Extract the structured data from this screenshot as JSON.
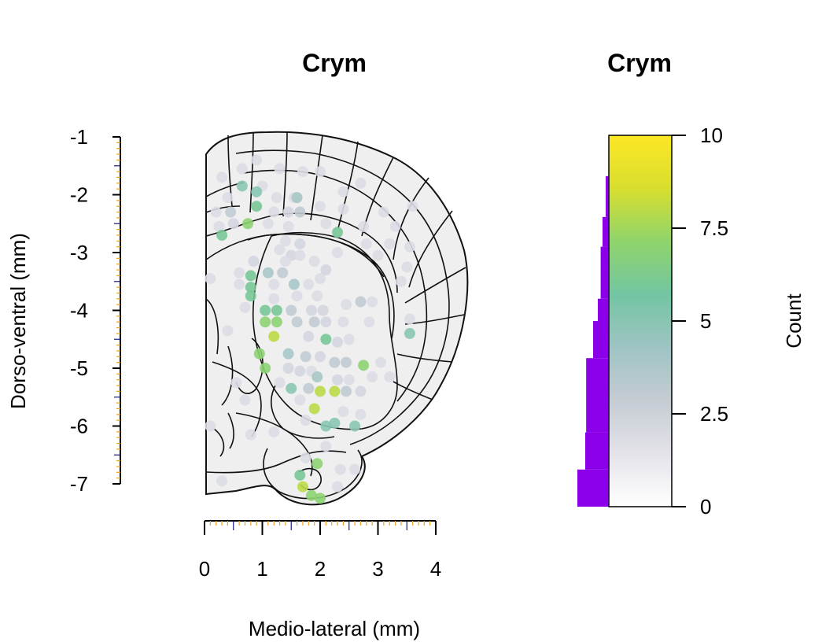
{
  "chart_data": [
    {
      "type": "scatter",
      "title": "Crym",
      "xlabel": "Medio-lateral (mm)",
      "ylabel": "Dorso-ventral (mm)",
      "xlim": [
        0,
        4
      ],
      "ylim": [
        -7,
        -1
      ],
      "xticks": [
        "0",
        "1",
        "2",
        "3",
        "4"
      ],
      "yticks": [
        "-1",
        "-2",
        "-3",
        "-4",
        "-5",
        "-6",
        "-7"
      ],
      "grid": false,
      "background": "coronal brain atlas outline (right hemisphere)",
      "point_color_scale": "count, 0 to 10 (white-grey-teal-green-yellow)",
      "points": [
        {
          "x": 0.3,
          "y": -1.7,
          "c": 1
        },
        {
          "x": 0.65,
          "y": -1.55,
          "c": 1
        },
        {
          "x": 0.9,
          "y": -1.4,
          "c": 1
        },
        {
          "x": 1.3,
          "y": -1.55,
          "c": 1
        },
        {
          "x": 1.7,
          "y": -1.6,
          "c": 1
        },
        {
          "x": 2.0,
          "y": -1.6,
          "c": 1
        },
        {
          "x": 2.7,
          "y": -1.8,
          "c": 1
        },
        {
          "x": 1.0,
          "y": -1.85,
          "c": 1
        },
        {
          "x": 0.65,
          "y": -1.85,
          "c": 5
        },
        {
          "x": 0.9,
          "y": -1.95,
          "c": 5
        },
        {
          "x": 0.4,
          "y": -2.05,
          "c": 1
        },
        {
          "x": 1.25,
          "y": -2.05,
          "c": 1
        },
        {
          "x": 1.55,
          "y": -2.05,
          "c": 1
        },
        {
          "x": 1.6,
          "y": -2.05,
          "c": 4
        },
        {
          "x": 2.0,
          "y": -2.2,
          "c": 1
        },
        {
          "x": 2.4,
          "y": -1.95,
          "c": 1
        },
        {
          "x": 3.6,
          "y": -2.2,
          "c": 1
        },
        {
          "x": 0.2,
          "y": -2.3,
          "c": 1
        },
        {
          "x": 0.45,
          "y": -2.3,
          "c": 3
        },
        {
          "x": 0.9,
          "y": -2.2,
          "c": 6
        },
        {
          "x": 1.2,
          "y": -2.3,
          "c": 1
        },
        {
          "x": 1.45,
          "y": -2.3,
          "c": 2
        },
        {
          "x": 1.65,
          "y": -2.3,
          "c": 3
        },
        {
          "x": 2.4,
          "y": -2.25,
          "c": 1
        },
        {
          "x": 3.1,
          "y": -2.3,
          "c": 1
        },
        {
          "x": 0.25,
          "y": -2.55,
          "c": 1
        },
        {
          "x": 0.5,
          "y": -2.5,
          "c": 2
        },
        {
          "x": 0.75,
          "y": -2.5,
          "c": 7
        },
        {
          "x": 0.3,
          "y": -2.7,
          "c": 6
        },
        {
          "x": 1.1,
          "y": -2.5,
          "c": 1
        },
        {
          "x": 1.45,
          "y": -2.55,
          "c": 1
        },
        {
          "x": 2.1,
          "y": -2.5,
          "c": 1
        },
        {
          "x": 2.3,
          "y": -2.65,
          "c": 6
        },
        {
          "x": 2.75,
          "y": -2.55,
          "c": 1
        },
        {
          "x": 3.3,
          "y": -2.55,
          "c": 1
        },
        {
          "x": 1.4,
          "y": -2.8,
          "c": 1
        },
        {
          "x": 1.65,
          "y": -2.85,
          "c": 2
        },
        {
          "x": 1.3,
          "y": -2.95,
          "c": 1
        },
        {
          "x": 1.5,
          "y": -3.05,
          "c": 2
        },
        {
          "x": 1.65,
          "y": -3.05,
          "c": 1
        },
        {
          "x": 2.8,
          "y": -2.85,
          "c": 1
        },
        {
          "x": 3.2,
          "y": -2.85,
          "c": 1
        },
        {
          "x": 3.55,
          "y": -2.9,
          "c": 1
        },
        {
          "x": 2.3,
          "y": -3.0,
          "c": 1
        },
        {
          "x": 3.0,
          "y": -3.05,
          "c": 1
        },
        {
          "x": 0.85,
          "y": -3.15,
          "c": 2
        },
        {
          "x": 1.4,
          "y": -3.15,
          "c": 1
        },
        {
          "x": 1.9,
          "y": -3.15,
          "c": 1
        },
        {
          "x": 2.1,
          "y": -3.3,
          "c": 2
        },
        {
          "x": 1.1,
          "y": -3.35,
          "c": 4
        },
        {
          "x": 1.35,
          "y": -3.35,
          "c": 3
        },
        {
          "x": 0.6,
          "y": -3.35,
          "c": 1
        },
        {
          "x": 0.8,
          "y": -3.4,
          "c": 6
        },
        {
          "x": 0.1,
          "y": -3.45,
          "c": 1
        },
        {
          "x": 1.2,
          "y": -3.55,
          "c": 1
        },
        {
          "x": 1.55,
          "y": -3.55,
          "c": 4
        },
        {
          "x": 0.8,
          "y": -3.6,
          "c": 6
        },
        {
          "x": 1.8,
          "y": -3.55,
          "c": 1
        },
        {
          "x": 2.0,
          "y": -3.45,
          "c": 1
        },
        {
          "x": 0.6,
          "y": -3.55,
          "c": 1
        },
        {
          "x": 3.4,
          "y": -3.5,
          "c": 1
        },
        {
          "x": 3.5,
          "y": -3.25,
          "c": 1
        },
        {
          "x": 0.8,
          "y": -3.75,
          "c": 6
        },
        {
          "x": 1.2,
          "y": -3.8,
          "c": 1
        },
        {
          "x": 1.6,
          "y": -3.75,
          "c": 1
        },
        {
          "x": 1.95,
          "y": -3.75,
          "c": 1
        },
        {
          "x": 2.7,
          "y": -3.85,
          "c": 3
        },
        {
          "x": 2.9,
          "y": -3.85,
          "c": 1
        },
        {
          "x": 2.45,
          "y": -3.9,
          "c": 1
        },
        {
          "x": 0.7,
          "y": -3.95,
          "c": 1
        },
        {
          "x": 1.05,
          "y": -4.0,
          "c": 6
        },
        {
          "x": 1.25,
          "y": -4.0,
          "c": 6
        },
        {
          "x": 1.5,
          "y": -4.0,
          "c": 3
        },
        {
          "x": 1.85,
          "y": -4.0,
          "c": 2
        },
        {
          "x": 2.05,
          "y": -4.0,
          "c": 2
        },
        {
          "x": 1.05,
          "y": -4.2,
          "c": 7
        },
        {
          "x": 1.25,
          "y": -4.2,
          "c": 7
        },
        {
          "x": 1.6,
          "y": -4.2,
          "c": 3
        },
        {
          "x": 1.9,
          "y": -4.2,
          "c": 3
        },
        {
          "x": 2.1,
          "y": -4.2,
          "c": 2
        },
        {
          "x": 2.4,
          "y": -4.2,
          "c": 1
        },
        {
          "x": 2.85,
          "y": -4.2,
          "c": 1
        },
        {
          "x": 3.55,
          "y": -4.15,
          "c": 1
        },
        {
          "x": 0.4,
          "y": -4.35,
          "c": 1
        },
        {
          "x": 1.2,
          "y": -4.45,
          "c": 8
        },
        {
          "x": 1.8,
          "y": -4.45,
          "c": 2
        },
        {
          "x": 2.1,
          "y": -4.5,
          "c": 6
        },
        {
          "x": 2.3,
          "y": -4.55,
          "c": 2
        },
        {
          "x": 2.5,
          "y": -4.5,
          "c": 1
        },
        {
          "x": 3.55,
          "y": -4.4,
          "c": 5
        },
        {
          "x": 0.95,
          "y": -4.75,
          "c": 7
        },
        {
          "x": 1.45,
          "y": -4.75,
          "c": 4
        },
        {
          "x": 1.75,
          "y": -4.8,
          "c": 3
        },
        {
          "x": 2.0,
          "y": -4.8,
          "c": 2
        },
        {
          "x": 2.25,
          "y": -4.9,
          "c": 3
        },
        {
          "x": 2.45,
          "y": -4.9,
          "c": 3
        },
        {
          "x": 2.75,
          "y": -4.95,
          "c": 7
        },
        {
          "x": 3.05,
          "y": -4.9,
          "c": 1
        },
        {
          "x": 1.05,
          "y": -5.0,
          "c": 7
        },
        {
          "x": 1.45,
          "y": -5.0,
          "c": 2
        },
        {
          "x": 1.65,
          "y": -5.05,
          "c": 2
        },
        {
          "x": 1.85,
          "y": -5.05,
          "c": 1
        },
        {
          "x": 1.95,
          "y": -5.15,
          "c": 4
        },
        {
          "x": 2.3,
          "y": -5.2,
          "c": 2
        },
        {
          "x": 2.5,
          "y": -5.2,
          "c": 1
        },
        {
          "x": 2.9,
          "y": -5.15,
          "c": 1
        },
        {
          "x": 3.2,
          "y": -5.15,
          "c": 1
        },
        {
          "x": 0.55,
          "y": -5.25,
          "c": 1
        },
        {
          "x": 1.3,
          "y": -5.25,
          "c": 1
        },
        {
          "x": 1.5,
          "y": -5.35,
          "c": 5
        },
        {
          "x": 1.8,
          "y": -5.35,
          "c": 3
        },
        {
          "x": 2.0,
          "y": -5.4,
          "c": 8
        },
        {
          "x": 2.25,
          "y": -5.4,
          "c": 8
        },
        {
          "x": 2.45,
          "y": -5.4,
          "c": 3
        },
        {
          "x": 2.7,
          "y": -5.4,
          "c": 2
        },
        {
          "x": 0.7,
          "y": -5.55,
          "c": 1
        },
        {
          "x": 1.65,
          "y": -5.55,
          "c": 1
        },
        {
          "x": 1.9,
          "y": -5.7,
          "c": 8
        },
        {
          "x": 2.4,
          "y": -5.75,
          "c": 1
        },
        {
          "x": 2.7,
          "y": -5.8,
          "c": 1
        },
        {
          "x": 1.75,
          "y": -5.9,
          "c": 1
        },
        {
          "x": 2.25,
          "y": -5.95,
          "c": 5
        },
        {
          "x": 2.1,
          "y": -6.0,
          "c": 5
        },
        {
          "x": 2.6,
          "y": -6.0,
          "c": 5
        },
        {
          "x": 0.1,
          "y": -6.0,
          "c": 1
        },
        {
          "x": 0.8,
          "y": -6.15,
          "c": 1
        },
        {
          "x": 1.2,
          "y": -6.1,
          "c": 1
        },
        {
          "x": 2.1,
          "y": -6.35,
          "c": 1
        },
        {
          "x": 1.75,
          "y": -6.55,
          "c": 1
        },
        {
          "x": 1.95,
          "y": -6.65,
          "c": 7
        },
        {
          "x": 2.35,
          "y": -6.75,
          "c": 1
        },
        {
          "x": 2.6,
          "y": -6.75,
          "c": 1
        },
        {
          "x": 1.65,
          "y": -6.85,
          "c": 6
        },
        {
          "x": 0.3,
          "y": -6.95,
          "c": 1
        },
        {
          "x": 1.7,
          "y": -7.05,
          "c": 8
        },
        {
          "x": 2.3,
          "y": -7.05,
          "c": 1
        },
        {
          "x": 1.85,
          "y": -7.2,
          "c": 7
        },
        {
          "x": 2.0,
          "y": -7.25,
          "c": 7
        }
      ]
    },
    {
      "type": "bar",
      "title": "Crym",
      "ylabel": "Count",
      "ylim": [
        0,
        10
      ],
      "yticks": [
        "0",
        "2.5",
        "5",
        "7.5",
        "10"
      ],
      "colorbar_colors": [
        "#ffffff",
        "#e4e3ea",
        "#c5ccd3",
        "#9fc4c3",
        "#72c5a2",
        "#8fd46b",
        "#d8de2e",
        "#fde725"
      ],
      "histogram_color": "#8b00e8",
      "histogram_bins": [
        {
          "from": 0,
          "to": 1,
          "value": 1.0
        },
        {
          "from": 1,
          "to": 2,
          "value": 0.75
        },
        {
          "from": 2,
          "to": 4,
          "value": 0.72
        },
        {
          "from": 4,
          "to": 5,
          "value": 0.5
        },
        {
          "from": 5,
          "to": 5.6,
          "value": 0.35
        },
        {
          "from": 5.6,
          "to": 7,
          "value": 0.26
        },
        {
          "from": 7,
          "to": 7.8,
          "value": 0.2
        },
        {
          "from": 7.8,
          "to": 8.9,
          "value": 0.1
        },
        {
          "from": 8.9,
          "to": 10,
          "value": 0.0
        }
      ]
    }
  ]
}
